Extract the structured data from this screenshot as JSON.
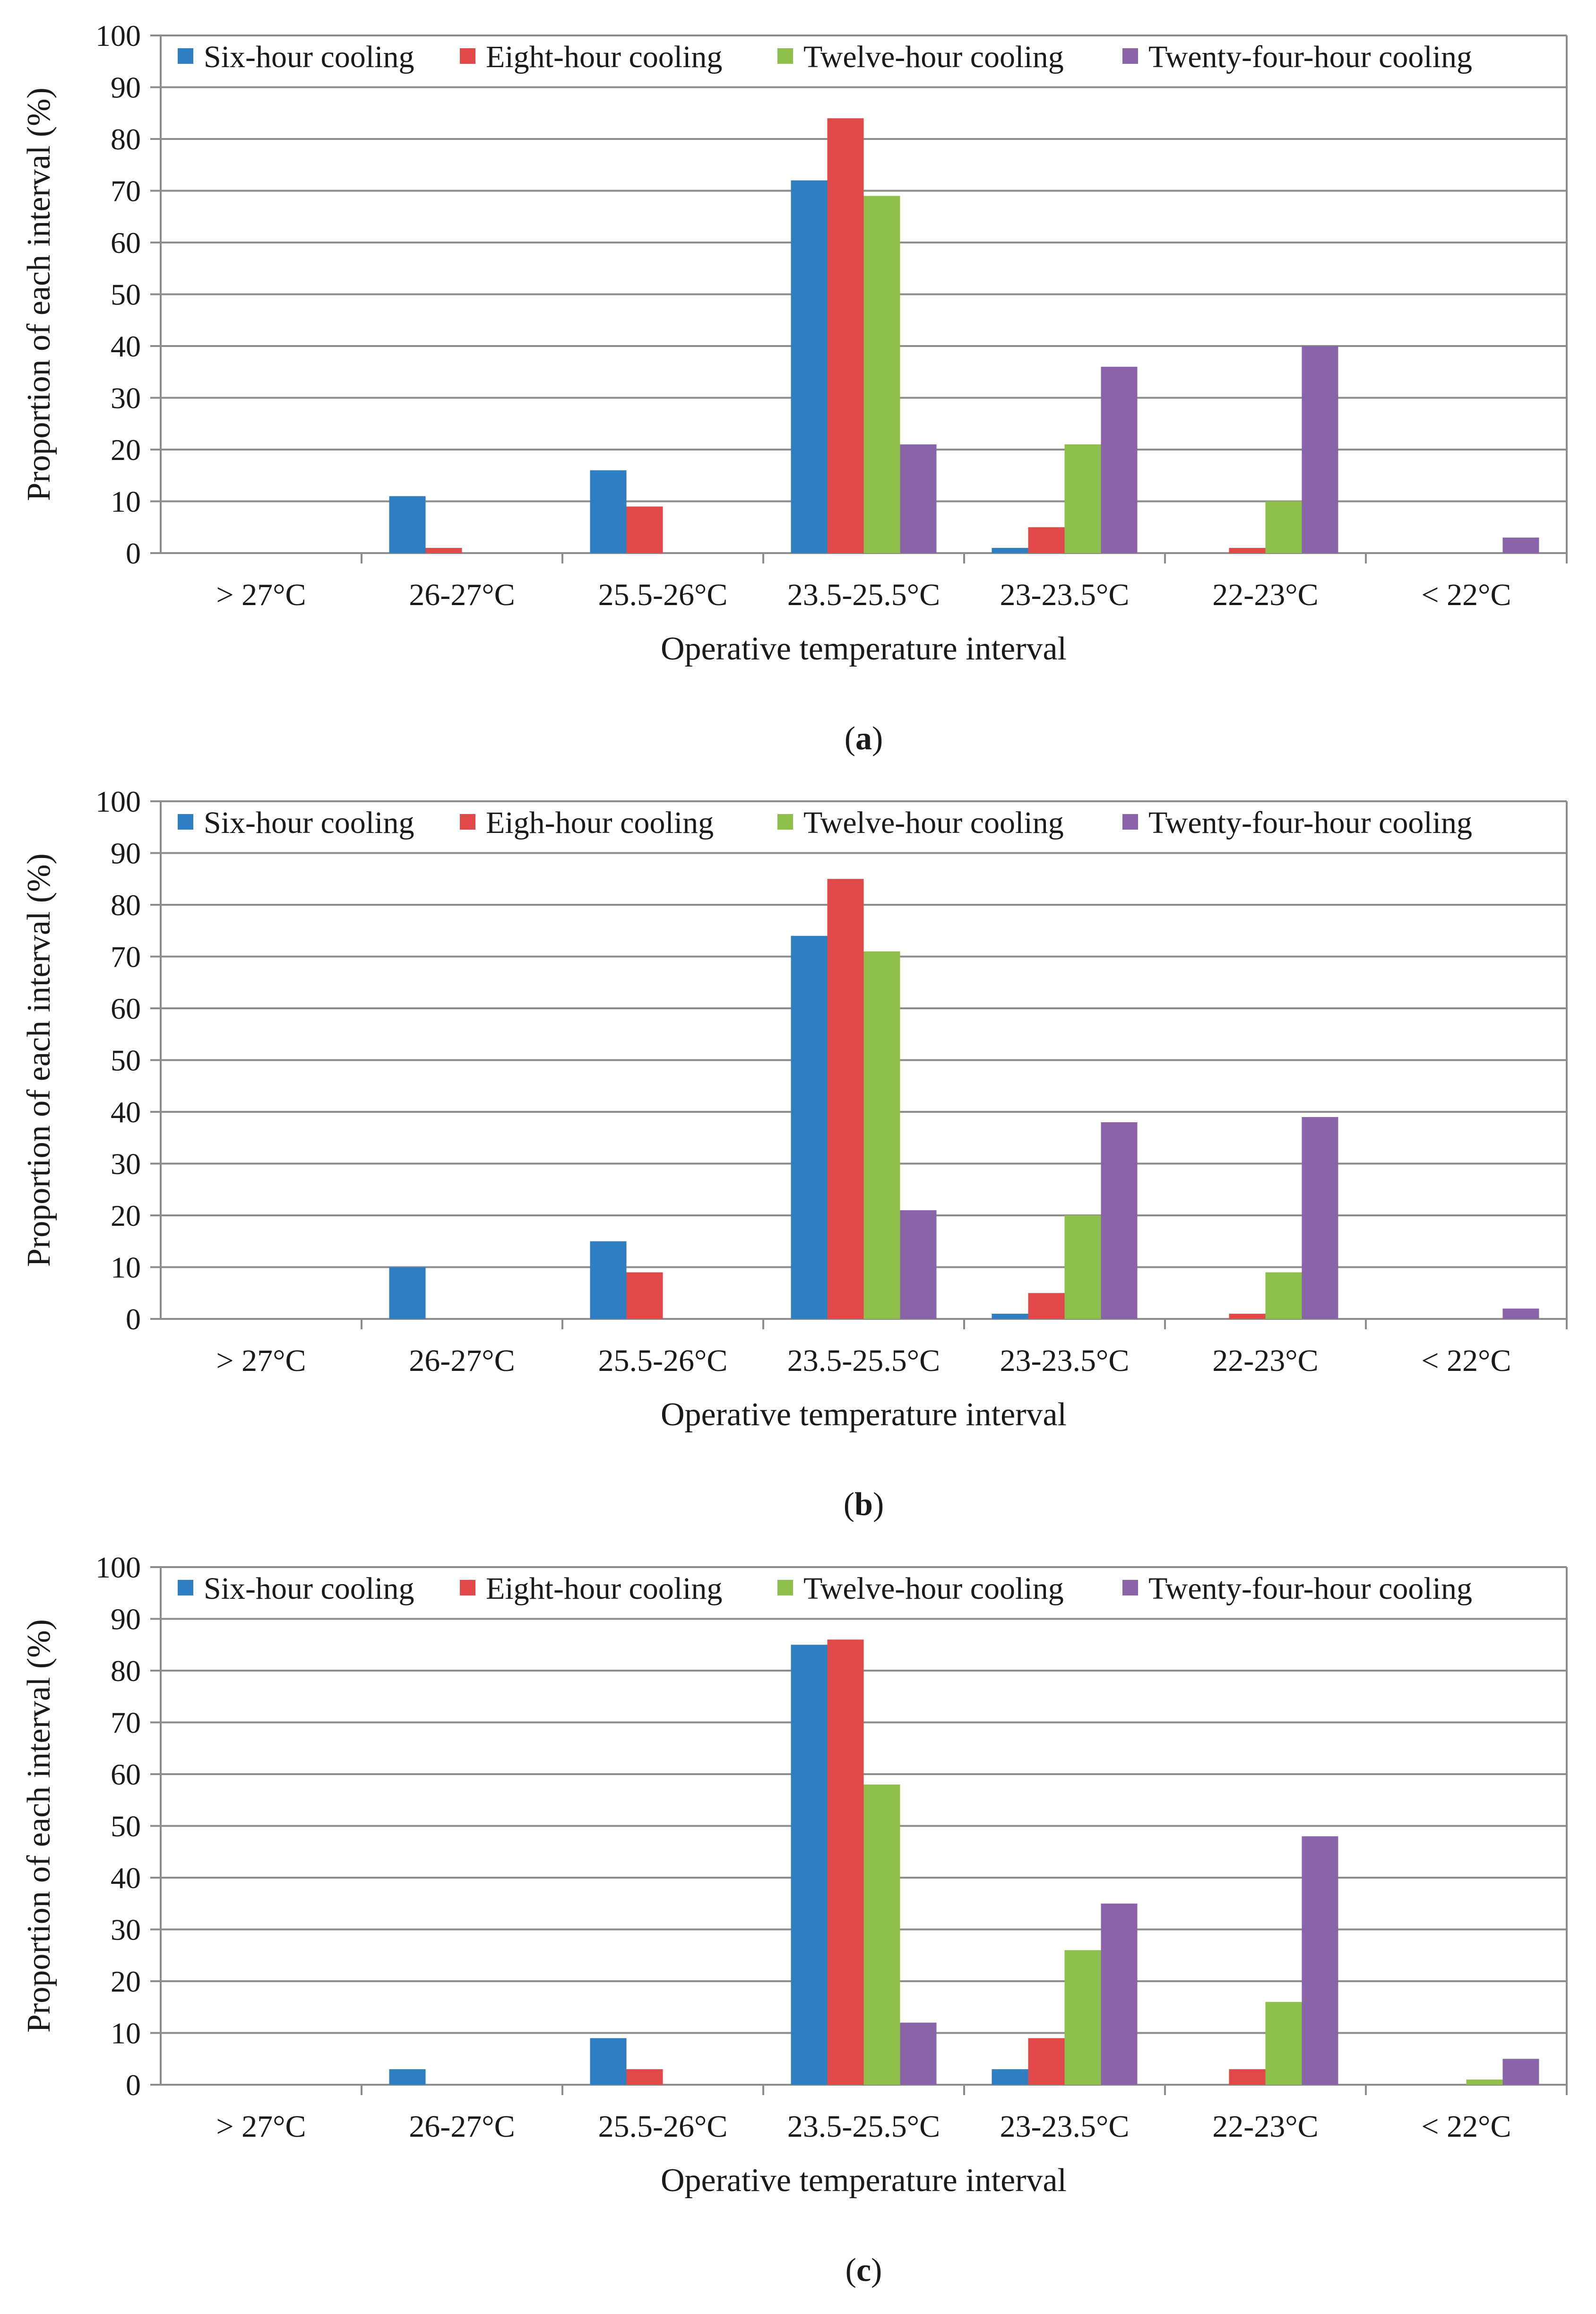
{
  "chart_data": [
    {
      "type": "bar",
      "panel_label": "a",
      "categories": [
        "> 27°C",
        "26-27°C",
        "25.5-26°C",
        "23.5-25.5°C",
        "23-23.5°C",
        "22-23°C",
        "< 22°C"
      ],
      "series": [
        {
          "name": "Six-hour cooling",
          "color": "#2e7fc2",
          "values": [
            0,
            11,
            16,
            72,
            1,
            0,
            0
          ]
        },
        {
          "name": "Eight-hour cooling",
          "color": "#e0484a",
          "values": [
            0,
            1,
            9,
            84,
            5,
            1,
            0
          ]
        },
        {
          "name": "Twelve-hour cooling",
          "color": "#8dbf4a",
          "values": [
            0,
            0,
            0,
            69,
            21,
            10,
            0
          ]
        },
        {
          "name": "Twenty-four-hour cooling",
          "color": "#8a64a8",
          "values": [
            0,
            0,
            0,
            21,
            36,
            40,
            3
          ]
        }
      ],
      "xlabel": "Operative temperature interval",
      "ylabel": "Proportion of each interval (%)",
      "ylim": [
        0,
        100
      ],
      "yticks": [
        0,
        10,
        20,
        30,
        40,
        50,
        60,
        70,
        80,
        90,
        100
      ],
      "grid": true,
      "legend_position": "top"
    },
    {
      "type": "bar",
      "panel_label": "b",
      "categories": [
        "> 27°C",
        "26-27°C",
        "25.5-26°C",
        "23.5-25.5°C",
        "23-23.5°C",
        "22-23°C",
        "< 22°C"
      ],
      "series": [
        {
          "name": "Six-hour cooling",
          "color": "#2e7fc2",
          "values": [
            0,
            10,
            15,
            74,
            1,
            0,
            0
          ]
        },
        {
          "name": "Eigh-hour cooling",
          "color": "#e0484a",
          "values": [
            0,
            0,
            9,
            85,
            5,
            1,
            0
          ]
        },
        {
          "name": "Twelve-hour cooling",
          "color": "#8dbf4a",
          "values": [
            0,
            0,
            0,
            71,
            20,
            9,
            0
          ]
        },
        {
          "name": "Twenty-four-hour cooling",
          "color": "#8a64a8",
          "values": [
            0,
            0,
            0,
            21,
            38,
            39,
            2
          ]
        }
      ],
      "xlabel": "Operative temperature interval",
      "ylabel": "Proportion of each interval (%)",
      "ylim": [
        0,
        100
      ],
      "yticks": [
        0,
        10,
        20,
        30,
        40,
        50,
        60,
        70,
        80,
        90,
        100
      ],
      "grid": true,
      "legend_position": "top"
    },
    {
      "type": "bar",
      "panel_label": "c",
      "categories": [
        "> 27°C",
        "26-27°C",
        "25.5-26°C",
        "23.5-25.5°C",
        "23-23.5°C",
        "22-23°C",
        "< 22°C"
      ],
      "series": [
        {
          "name": "Six-hour cooling",
          "color": "#2e7fc2",
          "values": [
            0,
            3,
            9,
            85,
            3,
            0,
            0
          ]
        },
        {
          "name": "Eight-hour cooling",
          "color": "#e0484a",
          "values": [
            0,
            0,
            3,
            86,
            9,
            3,
            0
          ]
        },
        {
          "name": "Twelve-hour cooling",
          "color": "#8dbf4a",
          "values": [
            0,
            0,
            0,
            58,
            26,
            16,
            1
          ]
        },
        {
          "name": "Twenty-four-hour cooling",
          "color": "#8a64a8",
          "values": [
            0,
            0,
            0,
            12,
            35,
            48,
            5
          ]
        }
      ],
      "xlabel": "Operative temperature interval",
      "ylabel": "Proportion of each interval (%)",
      "ylim": [
        0,
        100
      ],
      "yticks": [
        0,
        10,
        20,
        30,
        40,
        50,
        60,
        70,
        80,
        90,
        100
      ],
      "grid": true,
      "legend_position": "top"
    }
  ]
}
